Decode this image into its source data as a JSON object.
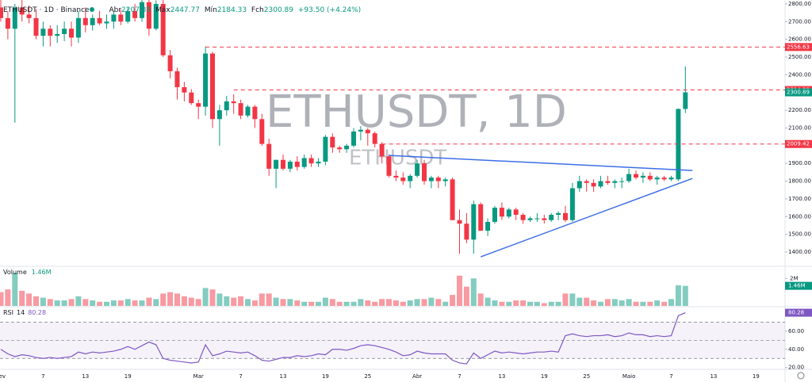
{
  "chart_data": {
    "type": "candlestick",
    "header": {
      "symbol": "ETHUSDT · 1D · Binance",
      "open_label": "Abr",
      "high_label": "Máx",
      "low_label": "Mín",
      "close_label": "Fch",
      "change": "+93.50 (+4.24%)"
    },
    "watermark": "ETHUSDT, 1D",
    "watermark_small": "ETHUSDT",
    "up_color": "#089981",
    "down_color": "#f23645",
    "categories": [
      "Fev",
      null,
      null,
      null,
      null,
      null,
      "7",
      null,
      null,
      null,
      null,
      null,
      "13",
      null,
      null,
      null,
      null,
      null,
      "19",
      null,
      null,
      null,
      null,
      null,
      null,
      null,
      null,
      null,
      "Mar",
      null,
      null,
      null,
      null,
      null,
      "7",
      null,
      null,
      null,
      null,
      null,
      "13",
      null,
      null,
      null,
      null,
      null,
      "19",
      null,
      null,
      null,
      null,
      null,
      "25",
      null,
      null,
      null,
      null,
      null,
      null,
      "Abr",
      null,
      null,
      null,
      null,
      null,
      "7",
      null,
      null,
      null,
      null,
      null,
      "13",
      null,
      null,
      null,
      null,
      null,
      "19",
      null,
      null,
      null,
      null,
      null,
      "25",
      null,
      null,
      null,
      null,
      null,
      "Maio",
      null,
      null,
      null,
      null,
      null,
      "7",
      null,
      null,
      null,
      null,
      null,
      "13",
      null,
      null,
      null,
      null,
      null,
      "19"
    ],
    "candles": [
      [
        2780,
        2830,
        2700,
        2720
      ],
      [
        2720,
        2760,
        2600,
        2660
      ],
      [
        2660,
        2800,
        2130,
        2780
      ],
      [
        2780,
        2830,
        2700,
        2740
      ],
      [
        2740,
        2790,
        2690,
        2720
      ],
      [
        2720,
        2770,
        2600,
        2620
      ],
      [
        2620,
        2700,
        2560,
        2660
      ],
      [
        2660,
        2680,
        2560,
        2620
      ],
      [
        2620,
        2680,
        2580,
        2630
      ],
      [
        2630,
        2700,
        2590,
        2660
      ],
      [
        2660,
        2700,
        2560,
        2610
      ],
      [
        2610,
        2760,
        2580,
        2720
      ],
      [
        2720,
        2780,
        2640,
        2680
      ],
      [
        2680,
        2740,
        2650,
        2720
      ],
      [
        2720,
        2760,
        2680,
        2690
      ],
      [
        2690,
        2740,
        2660,
        2700
      ],
      [
        2700,
        2760,
        2660,
        2740
      ],
      [
        2740,
        2770,
        2680,
        2700
      ],
      [
        2700,
        2780,
        2690,
        2760
      ],
      [
        2760,
        2800,
        2700,
        2720
      ],
      [
        2720,
        2830,
        2700,
        2810
      ],
      [
        2810,
        2850,
        2620,
        2660
      ],
      [
        2660,
        2820,
        2650,
        2800
      ],
      [
        2800,
        2830,
        2500,
        2510
      ],
      [
        2510,
        2540,
        2380,
        2420
      ],
      [
        2420,
        2440,
        2260,
        2330
      ],
      [
        2330,
        2360,
        2250,
        2300
      ],
      [
        2300,
        2320,
        2230,
        2240
      ],
      [
        2240,
        2260,
        2150,
        2220
      ],
      [
        2220,
        2560,
        2170,
        2520
      ],
      [
        2520,
        2530,
        2100,
        2150
      ],
      [
        2150,
        2230,
        2000,
        2200
      ],
      [
        2200,
        2280,
        2170,
        2250
      ],
      [
        2250,
        2290,
        2180,
        2240
      ],
      [
        2240,
        2260,
        2150,
        2170
      ],
      [
        2170,
        2230,
        2160,
        2220
      ],
      [
        2220,
        2230,
        2100,
        2150
      ],
      [
        2150,
        2180,
        2000,
        2010
      ],
      [
        2010,
        2040,
        1830,
        1870
      ],
      [
        1870,
        1920,
        1760,
        1920
      ],
      [
        1920,
        1950,
        1860,
        1870
      ],
      [
        1870,
        1920,
        1850,
        1910
      ],
      [
        1910,
        1940,
        1860,
        1880
      ],
      [
        1880,
        1950,
        1870,
        1930
      ],
      [
        1930,
        1950,
        1880,
        1900
      ],
      [
        1900,
        1930,
        1880,
        1910
      ],
      [
        1910,
        2060,
        1890,
        2050
      ],
      [
        2050,
        2070,
        1960,
        1990
      ],
      [
        1990,
        2000,
        1960,
        1980
      ],
      [
        1980,
        2010,
        1960,
        2000
      ],
      [
        2000,
        2100,
        1990,
        2080
      ],
      [
        2080,
        2110,
        2030,
        2090
      ],
      [
        2090,
        2100,
        2000,
        2070
      ],
      [
        2070,
        2080,
        1990,
        2010
      ],
      [
        2010,
        2020,
        1900,
        1940
      ],
      [
        1940,
        1950,
        1820,
        1830
      ],
      [
        1830,
        1860,
        1800,
        1820
      ],
      [
        1820,
        1850,
        1780,
        1800
      ],
      [
        1800,
        1840,
        1760,
        1830
      ],
      [
        1830,
        1920,
        1820,
        1900
      ],
      [
        1900,
        1920,
        1780,
        1800
      ],
      [
        1800,
        1830,
        1760,
        1820
      ],
      [
        1820,
        1830,
        1760,
        1800
      ],
      [
        1800,
        1820,
        1770,
        1810
      ],
      [
        1810,
        1820,
        1580,
        1580
      ],
      [
        1580,
        1640,
        1390,
        1560
      ],
      [
        1560,
        1620,
        1450,
        1470
      ],
      [
        1470,
        1690,
        1390,
        1670
      ],
      [
        1670,
        1680,
        1520,
        1520
      ],
      [
        1520,
        1590,
        1490,
        1570
      ],
      [
        1570,
        1660,
        1560,
        1650
      ],
      [
        1650,
        1680,
        1580,
        1600
      ],
      [
        1600,
        1650,
        1590,
        1640
      ],
      [
        1640,
        1650,
        1580,
        1610
      ],
      [
        1610,
        1620,
        1560,
        1580
      ],
      [
        1580,
        1600,
        1570,
        1590
      ],
      [
        1590,
        1620,
        1570,
        1590
      ],
      [
        1590,
        1610,
        1560,
        1580
      ],
      [
        1580,
        1620,
        1570,
        1610
      ],
      [
        1610,
        1630,
        1580,
        1620
      ],
      [
        1620,
        1660,
        1570,
        1580
      ],
      [
        1580,
        1790,
        1570,
        1760
      ],
      [
        1760,
        1830,
        1740,
        1800
      ],
      [
        1800,
        1810,
        1740,
        1790
      ],
      [
        1790,
        1810,
        1740,
        1770
      ],
      [
        1770,
        1830,
        1760,
        1800
      ],
      [
        1800,
        1830,
        1780,
        1790
      ],
      [
        1790,
        1810,
        1760,
        1800
      ],
      [
        1800,
        1820,
        1760,
        1800
      ],
      [
        1800,
        1870,
        1790,
        1840
      ],
      [
        1840,
        1860,
        1810,
        1820
      ],
      [
        1820,
        1850,
        1790,
        1830
      ],
      [
        1830,
        1850,
        1800,
        1810
      ],
      [
        1810,
        1830,
        1780,
        1820
      ],
      [
        1820,
        1830,
        1800,
        1810
      ],
      [
        1810,
        1830,
        1800,
        1820
      ],
      [
        1810,
        2210,
        1800,
        2207.39
      ],
      [
        2207.39,
        2447.77,
        2184.33,
        2300.89
      ],
      null,
      null,
      null,
      null,
      null,
      null,
      null,
      null,
      null,
      null
    ],
    "ylim": [
      1324,
      2822
    ],
    "yticks": [
      {
        "value": 1400,
        "label": "1400.00"
      },
      {
        "value": 1500,
        "label": "1500.00"
      },
      {
        "value": 1600,
        "label": "1600.00"
      },
      {
        "value": 1700,
        "label": "1700.00"
      },
      {
        "value": 1800,
        "label": "1800.00"
      },
      {
        "value": 1900,
        "label": "1900.00"
      },
      {
        "value": 2000,
        "label": "2000.00"
      },
      {
        "value": 2100,
        "label": "2100.00"
      },
      {
        "value": 2200,
        "label": "2200.00"
      },
      {
        "value": 2300,
        "label": "2300.00"
      },
      {
        "value": 2400,
        "label": "2400.00"
      },
      {
        "value": 2500,
        "label": "2500.00"
      },
      {
        "value": 2600,
        "label": "2600.00"
      },
      {
        "value": 2700,
        "label": "2700.00"
      },
      {
        "value": 2800,
        "label": "2800.00"
      }
    ],
    "levels": [
      {
        "value": 2556.63,
        "from_index": 29,
        "color": "#f23645"
      },
      {
        "value": 2314.29,
        "from_index": 33,
        "color": "#f23645"
      },
      {
        "value": 2009.42,
        "from_index": 54,
        "color": "#f23645"
      }
    ],
    "trendlines": [
      {
        "from": [
          55,
          1945
        ],
        "to": [
          98,
          1860
        ],
        "color": "#3d6ee8"
      },
      {
        "from": [
          68,
          1373
        ],
        "to": [
          98,
          1815
        ],
        "color": "#3d6ee8"
      }
    ],
    "volume": {
      "name": "Volume",
      "last_label": "1.46M",
      "ylim": [
        0,
        2.65
      ],
      "yticks": [
        {
          "value": 2,
          "label": "2M"
        }
      ],
      "values": [
        1.0,
        1.2,
        2.4,
        1.1,
        0.9,
        0.7,
        0.6,
        0.5,
        0.4,
        0.4,
        0.5,
        0.7,
        0.5,
        0.4,
        0.3,
        0.3,
        0.4,
        0.4,
        0.5,
        0.4,
        0.4,
        0.6,
        0.5,
        0.9,
        1.0,
        0.9,
        0.7,
        0.6,
        0.5,
        1.3,
        1.2,
        0.9,
        0.7,
        0.6,
        0.7,
        0.5,
        0.4,
        0.9,
        0.9,
        0.6,
        0.5,
        0.5,
        0.4,
        0.3,
        0.3,
        0.3,
        0.6,
        0.5,
        0.3,
        0.3,
        0.3,
        0.5,
        0.4,
        0.3,
        0.5,
        0.5,
        0.4,
        0.3,
        0.4,
        0.5,
        0.5,
        0.6,
        0.5,
        0.3,
        0.8,
        2.2,
        1.4,
        2.0,
        0.9,
        0.6,
        0.4,
        0.3,
        0.3,
        0.4,
        0.4,
        0.3,
        0.3,
        0.2,
        0.3,
        0.3,
        0.9,
        0.9,
        0.6,
        0.6,
        0.4,
        0.3,
        0.5,
        0.5,
        0.4,
        0.5,
        0.3,
        0.3,
        0.3,
        0.4,
        0.3,
        0.5,
        1.5,
        1.46,
        null,
        null,
        null,
        null,
        null,
        null,
        null,
        null,
        null,
        null
      ]
    },
    "rsi": {
      "name": "RSI",
      "length": 14,
      "color": "#7e57c2",
      "ylim": [
        18,
        86
      ],
      "band": [
        30,
        70
      ],
      "midline": 50,
      "yticks": [
        {
          "value": 20,
          "label": "20.00"
        },
        {
          "value": 40,
          "label": "40.00"
        },
        {
          "value": 60,
          "label": "60.00"
        },
        {
          "value": 80,
          "label": "80.00"
        }
      ],
      "values": [
        40,
        35,
        32,
        34,
        33,
        31,
        30,
        31,
        30,
        31,
        32,
        37,
        35,
        37,
        36,
        37,
        38,
        40,
        43,
        40,
        44,
        48,
        45,
        30,
        28,
        27,
        26,
        25,
        26,
        45,
        33,
        35,
        38,
        37,
        36,
        37,
        33,
        28,
        27,
        29,
        31,
        31,
        33,
        32,
        33,
        35,
        34,
        40,
        40,
        39,
        41,
        44,
        45,
        44,
        42,
        40,
        37,
        33,
        34,
        38,
        36,
        35,
        35,
        35,
        28,
        25,
        24,
        36,
        30,
        34,
        38,
        36,
        37,
        36,
        35,
        36,
        37,
        37,
        38,
        37,
        55,
        57,
        55,
        54,
        55,
        55,
        56,
        54,
        55,
        58,
        56,
        56,
        54,
        55,
        54,
        55,
        77,
        80.28,
        null,
        null,
        null,
        null,
        null,
        null,
        null,
        null,
        null,
        null
      ]
    }
  }
}
